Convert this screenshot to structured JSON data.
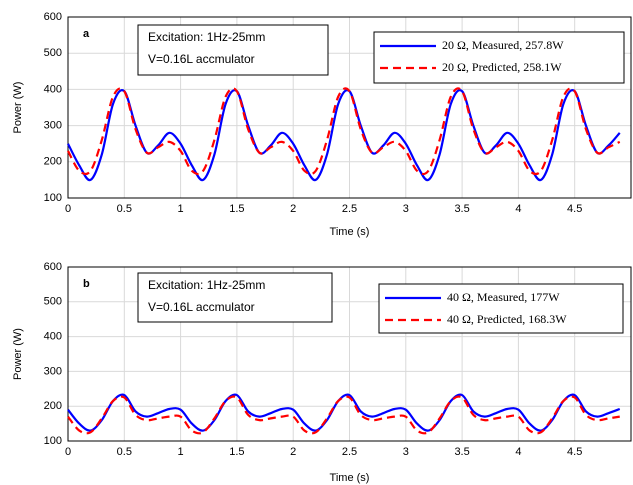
{
  "chart_data": [
    {
      "type": "line",
      "panel_label": "a",
      "annotations": [
        "Excitation: 1Hz-25mm",
        "V=0.16L accmulator"
      ],
      "xlabel": "Time (s)",
      "ylabel": "Power (W)",
      "grid": true,
      "xlim": [
        0,
        5
      ],
      "ylim": [
        100,
        600
      ],
      "xticks": [
        0,
        0.5,
        1,
        1.5,
        2,
        2.5,
        3,
        3.5,
        4,
        4.5
      ],
      "yticks": [
        100,
        200,
        300,
        400,
        500,
        600
      ],
      "x": [
        0,
        0.1,
        0.2,
        0.3,
        0.4,
        0.5,
        0.6,
        0.7,
        0.8,
        0.9,
        1,
        1.1,
        1.2,
        1.3,
        1.4,
        1.5,
        1.6,
        1.7,
        1.8,
        1.9,
        2,
        2.1,
        2.2,
        2.3,
        2.4,
        2.5,
        2.6,
        2.7,
        2.8,
        2.9,
        3,
        3.1,
        3.2,
        3.3,
        3.4,
        3.5,
        3.6,
        3.7,
        3.8,
        3.9,
        4,
        4.1,
        4.2,
        4.3,
        4.4,
        4.5,
        4.6,
        4.7,
        4.8,
        4.9
      ],
      "series": [
        {
          "name": "20 Ω, Measured, 257.8W",
          "color": "#0000ff",
          "dashed": false,
          "values": [
            250,
            190,
            150,
            220,
            360,
            395,
            300,
            225,
            245,
            280,
            250,
            190,
            150,
            220,
            360,
            395,
            300,
            225,
            245,
            280,
            250,
            190,
            150,
            220,
            360,
            395,
            300,
            225,
            245,
            280,
            250,
            190,
            150,
            220,
            360,
            395,
            300,
            225,
            245,
            280,
            250,
            190,
            150,
            220,
            360,
            395,
            300,
            225,
            245,
            280
          ]
        },
        {
          "name": "20 Ω, Predicted, 258.1W",
          "color": "#ff0000",
          "dashed": true,
          "values": [
            230,
            175,
            175,
            260,
            380,
            395,
            290,
            225,
            240,
            255,
            230,
            175,
            175,
            260,
            380,
            395,
            290,
            225,
            240,
            255,
            230,
            175,
            175,
            260,
            380,
            395,
            290,
            225,
            240,
            255,
            230,
            175,
            175,
            260,
            380,
            395,
            290,
            225,
            240,
            255,
            230,
            175,
            175,
            260,
            380,
            395,
            290,
            225,
            240,
            255
          ]
        }
      ]
    },
    {
      "type": "line",
      "panel_label": "b",
      "annotations": [
        "Excitation: 1Hz-25mm",
        "V=0.16L accmulator"
      ],
      "xlabel": "Time (s)",
      "ylabel": "Power (W)",
      "grid": true,
      "xlim": [
        0,
        5
      ],
      "ylim": [
        100,
        600
      ],
      "xticks": [
        0,
        0.5,
        1,
        1.5,
        2,
        2.5,
        3,
        3.5,
        4,
        4.5
      ],
      "yticks": [
        100,
        200,
        300,
        400,
        500,
        600
      ],
      "x": [
        0,
        0.1,
        0.2,
        0.3,
        0.4,
        0.5,
        0.6,
        0.7,
        0.8,
        0.9,
        1,
        1.1,
        1.2,
        1.3,
        1.4,
        1.5,
        1.6,
        1.7,
        1.8,
        1.9,
        2,
        2.1,
        2.2,
        2.3,
        2.4,
        2.5,
        2.6,
        2.7,
        2.8,
        2.9,
        3,
        3.1,
        3.2,
        3.3,
        3.4,
        3.5,
        3.6,
        3.7,
        3.8,
        3.9,
        4,
        4.1,
        4.2,
        4.3,
        4.4,
        4.5,
        4.6,
        4.7,
        4.8,
        4.9
      ],
      "series": [
        {
          "name": "40 Ω, Measured, 177W",
          "color": "#0000ff",
          "dashed": false,
          "values": [
            190,
            150,
            130,
            160,
            215,
            232,
            185,
            170,
            180,
            192,
            190,
            150,
            130,
            160,
            215,
            232,
            185,
            170,
            180,
            192,
            190,
            150,
            130,
            160,
            215,
            232,
            185,
            170,
            180,
            192,
            190,
            150,
            130,
            160,
            215,
            232,
            185,
            170,
            180,
            192,
            190,
            150,
            130,
            160,
            215,
            232,
            185,
            170,
            180,
            192
          ]
        },
        {
          "name": "40 Ω, Predicted, 168.3W",
          "color": "#ff0000",
          "dashed": true,
          "values": [
            170,
            130,
            125,
            165,
            215,
            225,
            175,
            160,
            165,
            170,
            170,
            130,
            125,
            165,
            215,
            225,
            175,
            160,
            165,
            170,
            170,
            130,
            125,
            165,
            215,
            225,
            175,
            160,
            165,
            170,
            170,
            130,
            125,
            165,
            215,
            225,
            175,
            160,
            165,
            170,
            170,
            130,
            125,
            165,
            215,
            225,
            175,
            160,
            165,
            170
          ]
        }
      ]
    }
  ]
}
